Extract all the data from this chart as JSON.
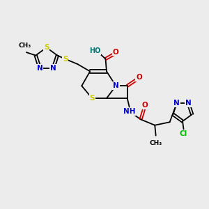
{
  "bg_color": "#ececec",
  "bond_color": "#000000",
  "atom_colors": {
    "N": "#0000cc",
    "S": "#cccc00",
    "O": "#cc0000",
    "Cl": "#00bb00",
    "C": "#000000",
    "H": "#007777"
  },
  "figsize": [
    3.0,
    3.0
  ],
  "dpi": 100,
  "xlim": [
    0,
    10
  ],
  "ylim": [
    0,
    10
  ]
}
